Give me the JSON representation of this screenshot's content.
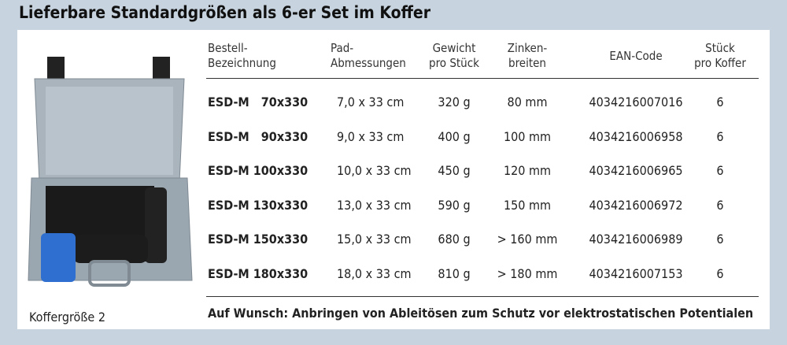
{
  "header": {
    "title": "Lieferbare Standardgrößen als 6-er Set im Koffer"
  },
  "image": {
    "caption": "Koffergröße 2"
  },
  "table": {
    "columns": [
      [
        "Bestell-",
        "Bezeichnung"
      ],
      [
        "Pad-",
        "Abmessungen"
      ],
      [
        "Gewicht",
        "pro Stück"
      ],
      [
        "Zinken-",
        "breiten"
      ],
      [
        "EAN-Code"
      ],
      [
        "Stück",
        "pro Koffer"
      ]
    ],
    "rows": [
      [
        "ESD-M   70x330",
        "7,0 x 33 cm",
        "320 g",
        "80 mm",
        "4034216007016",
        "6"
      ],
      [
        "ESD-M   90x330",
        "9,0 x 33 cm",
        "400 g",
        "100 mm",
        "4034216006958",
        "6"
      ],
      [
        "ESD-M 100x330",
        "10,0 x 33 cm",
        "450 g",
        "120 mm",
        "4034216006965",
        "6"
      ],
      [
        "ESD-M 130x330",
        "13,0 x 33 cm",
        "590 g",
        "150 mm",
        "4034216006972",
        "6"
      ],
      [
        "ESD-M 150x330",
        "15,0 x 33 cm",
        "680 g",
        "> 160 mm",
        "4034216006989",
        "6"
      ],
      [
        "ESD-M 180x330",
        "18,0 x 33 cm",
        "810 g",
        "> 180 mm",
        "4034216007153",
        "6"
      ]
    ]
  },
  "footer": {
    "note": "Auf Wunsch: Anbringen von Ableitösen zum Schutz vor elektrostatischen Potentialen"
  }
}
